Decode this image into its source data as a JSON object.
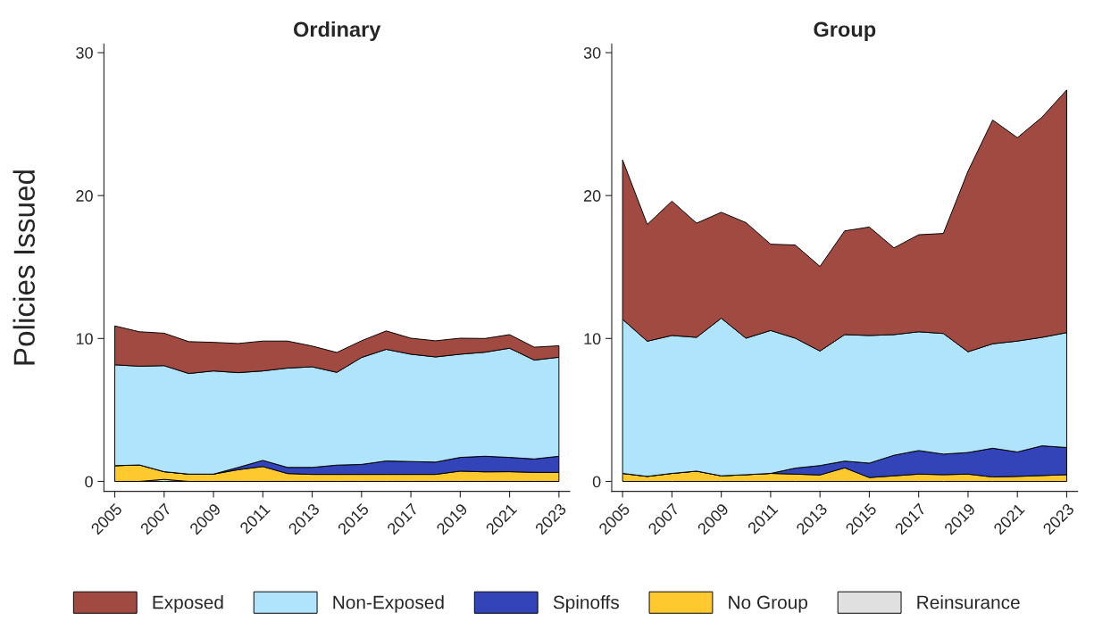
{
  "chart_data": [
    {
      "type": "area",
      "title": "Ordinary",
      "ylabel": "Policies Issued",
      "stacked": true,
      "legend": "bottom",
      "x": [
        2005,
        2006,
        2007,
        2008,
        2009,
        2010,
        2011,
        2012,
        2013,
        2014,
        2015,
        2016,
        2017,
        2018,
        2019,
        2020,
        2021,
        2022,
        2023
      ],
      "xlim": [
        2004.56,
        2023.44
      ],
      "xticks": [
        2005,
        2007,
        2009,
        2011,
        2013,
        2015,
        2017,
        2019,
        2021,
        2023
      ],
      "ylim": [
        -0.7,
        30.6
      ],
      "yticks": [
        0,
        10,
        20,
        30
      ],
      "grid": false,
      "series": [
        {
          "name": "Reinsurance",
          "color": "#e0e0e0",
          "values": [
            0,
            0,
            0.14,
            0,
            0,
            0,
            0,
            0,
            0,
            0,
            0,
            0,
            0,
            0,
            0,
            0,
            0,
            0,
            0
          ]
        },
        {
          "name": "No Group",
          "color": "#fdc92f",
          "values": [
            1.1,
            1.15,
            0.54,
            0.51,
            0.51,
            0.82,
            1.04,
            0.55,
            0.49,
            0.49,
            0.49,
            0.49,
            0.49,
            0.49,
            0.72,
            0.67,
            0.68,
            0.63,
            0.63
          ]
        },
        {
          "name": "Spinoffs",
          "color": "#3343b8",
          "values": [
            0,
            0,
            0,
            0,
            0,
            0.16,
            0.43,
            0.43,
            0.49,
            0.65,
            0.7,
            0.94,
            0.9,
            0.86,
            0.96,
            1.09,
            1.0,
            0.94,
            1.13
          ]
        },
        {
          "name": "Non-Exposed",
          "color": "#b0e4fc",
          "values": [
            7.06,
            6.91,
            7.42,
            7.04,
            7.22,
            6.63,
            6.26,
            6.95,
            7.04,
            6.49,
            7.48,
            7.81,
            7.51,
            7.36,
            7.22,
            7.28,
            7.64,
            6.92,
            6.93
          ]
        },
        {
          "name": "Exposed",
          "color": "#a04a42",
          "values": [
            2.72,
            2.41,
            2.27,
            2.23,
            2.0,
            2.04,
            2.09,
            1.89,
            1.45,
            1.39,
            1.17,
            1.29,
            1.12,
            1.13,
            1.12,
            0.96,
            0.95,
            0.9,
            0.8
          ]
        }
      ]
    },
    {
      "type": "area",
      "title": "Group",
      "stacked": true,
      "x": [
        2005,
        2006,
        2007,
        2008,
        2009,
        2010,
        2011,
        2012,
        2013,
        2014,
        2015,
        2016,
        2017,
        2018,
        2019,
        2020,
        2021,
        2022,
        2023
      ],
      "xlim": [
        2004.56,
        2023.44
      ],
      "xticks": [
        2005,
        2007,
        2009,
        2011,
        2013,
        2015,
        2017,
        2019,
        2021,
        2023
      ],
      "ylim": [
        -0.7,
        30.6
      ],
      "yticks": [
        0,
        10,
        20,
        30
      ],
      "grid": false,
      "series": [
        {
          "color": "#fdc92f",
          "values": [
            0.56,
            0.35,
            0.56,
            0.72,
            0.39,
            0.47,
            0.56,
            0.51,
            0.45,
            0.95,
            0.27,
            0.39,
            0.51,
            0.47,
            0.51,
            0.31,
            0.35,
            0.41,
            0.47
          ]
        },
        {
          "color": "#3343b8",
          "values": [
            0,
            0,
            0,
            0,
            0,
            0,
            0,
            0.42,
            0.66,
            0.47,
            1.01,
            1.44,
            1.65,
            1.44,
            1.51,
            2.01,
            1.71,
            2.08,
            1.9
          ]
        },
        {
          "color": "#b0e4fc",
          "values": [
            10.78,
            9.46,
            9.65,
            9.36,
            11.03,
            9.55,
            10.0,
            9.09,
            8.01,
            8.85,
            8.93,
            8.44,
            8.31,
            8.44,
            7.05,
            7.31,
            7.76,
            7.59,
            8.04
          ]
        },
        {
          "color": "#a04a42",
          "values": [
            11.15,
            8.17,
            9.4,
            7.99,
            7.41,
            8.09,
            6.04,
            6.52,
            5.92,
            7.26,
            7.59,
            6.07,
            6.79,
            7.0,
            12.64,
            15.66,
            14.23,
            15.41,
            16.98
          ]
        }
      ]
    }
  ]
}
